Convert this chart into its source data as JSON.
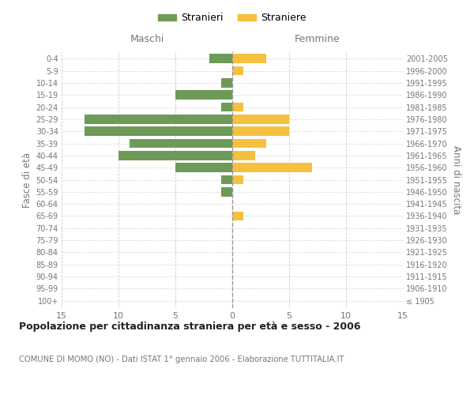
{
  "age_groups": [
    "100+",
    "95-99",
    "90-94",
    "85-89",
    "80-84",
    "75-79",
    "70-74",
    "65-69",
    "60-64",
    "55-59",
    "50-54",
    "45-49",
    "40-44",
    "35-39",
    "30-34",
    "25-29",
    "20-24",
    "15-19",
    "10-14",
    "5-9",
    "0-4"
  ],
  "birth_years": [
    "≤ 1905",
    "1906-1910",
    "1911-1915",
    "1916-1920",
    "1921-1925",
    "1926-1930",
    "1931-1935",
    "1936-1940",
    "1941-1945",
    "1946-1950",
    "1951-1955",
    "1956-1960",
    "1961-1965",
    "1966-1970",
    "1971-1975",
    "1976-1980",
    "1981-1985",
    "1986-1990",
    "1991-1995",
    "1996-2000",
    "2001-2005"
  ],
  "maschi": [
    0,
    0,
    0,
    0,
    0,
    0,
    0,
    0,
    0,
    1,
    1,
    5,
    10,
    9,
    13,
    13,
    1,
    5,
    1,
    0,
    2
  ],
  "femmine": [
    0,
    0,
    0,
    0,
    0,
    0,
    0,
    1,
    0,
    0,
    1,
    7,
    2,
    3,
    5,
    5,
    1,
    0,
    0,
    1,
    3
  ],
  "color_maschi": "#6d9b57",
  "color_femmine": "#f5c040",
  "title": "Popolazione per cittadinanza straniera per età e sesso - 2006",
  "subtitle": "COMUNE DI MOMO (NO) - Dati ISTAT 1° gennaio 2006 - Elaborazione TUTTITALIA.IT",
  "xlabel_left": "Maschi",
  "xlabel_right": "Femmine",
  "ylabel_left": "Fasce di età",
  "ylabel_right": "Anni di nascita",
  "xlim": 15,
  "legend_stranieri": "Stranieri",
  "legend_straniere": "Straniere",
  "background_color": "#ffffff",
  "grid_color": "#cccccc",
  "label_color": "#777777"
}
